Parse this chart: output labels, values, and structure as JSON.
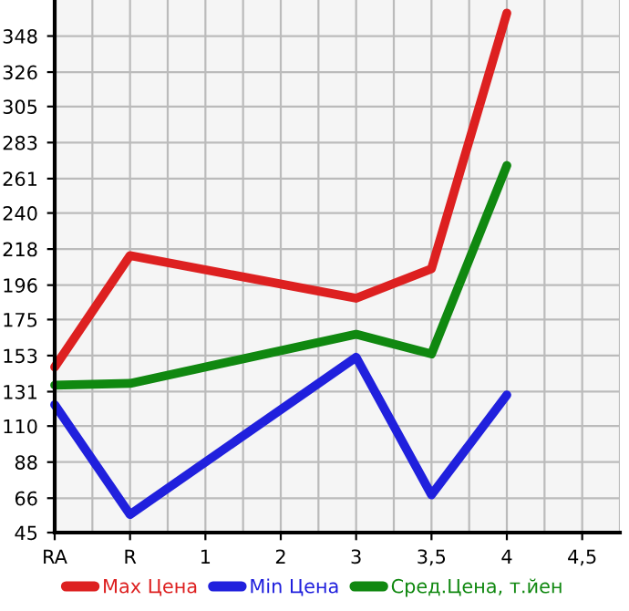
{
  "chart_data": {
    "type": "line",
    "categories": [
      "RA",
      "R",
      "1",
      "2",
      "3",
      "3,5",
      "4",
      "4,5"
    ],
    "series": [
      {
        "name": "Max Цена",
        "color": "#dd2020",
        "values": [
          146,
          214,
          null,
          null,
          188,
          206,
          362,
          null
        ]
      },
      {
        "name": "Min Цена",
        "color": "#2020dd",
        "values": [
          123,
          56,
          null,
          null,
          152,
          68,
          129,
          null
        ]
      },
      {
        "name": "Сред.Цена, т.йен",
        "color": "#108810",
        "values": [
          135,
          136,
          null,
          null,
          166,
          154,
          269,
          null
        ]
      }
    ],
    "ylim": [
      45,
      370
    ],
    "yticks": [
      45,
      66,
      88,
      110,
      131,
      153,
      175,
      196,
      218,
      240,
      261,
      283,
      305,
      326,
      348
    ],
    "grid": true,
    "legend": "bottom",
    "marker": "none",
    "line_style": "solid"
  }
}
